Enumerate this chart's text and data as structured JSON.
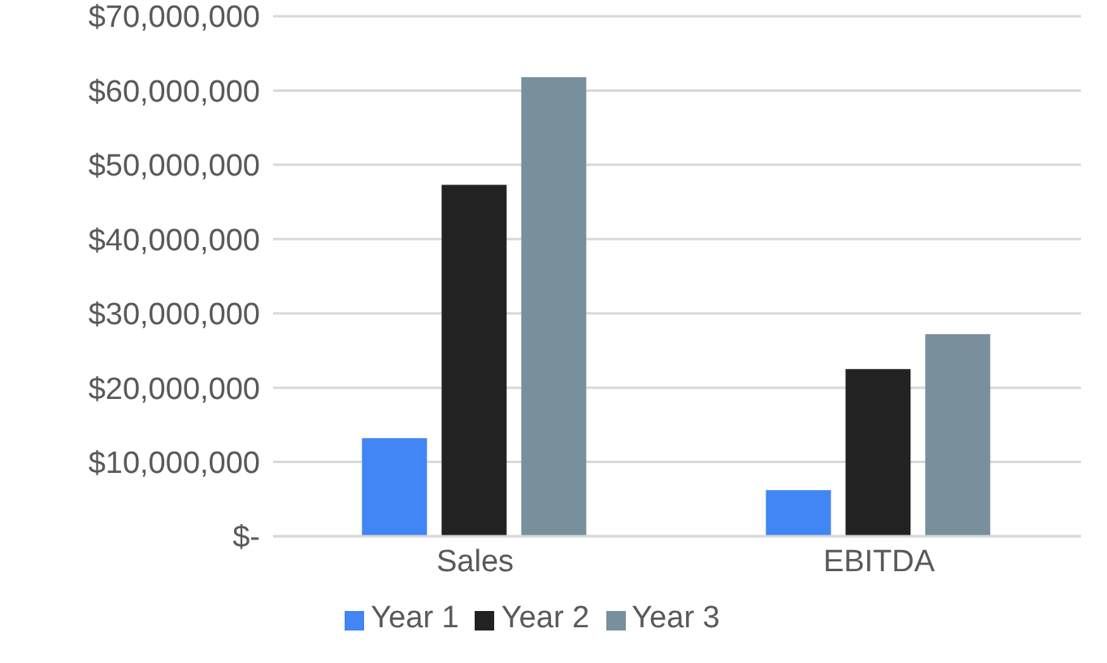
{
  "chart_data": {
    "type": "bar",
    "categories": [
      "Sales",
      "EBITDA"
    ],
    "series": [
      {
        "name": "Year 1",
        "color": "#4285f4",
        "values": [
          13200000,
          6200000
        ]
      },
      {
        "name": "Year 2",
        "color": "#222222",
        "values": [
          47300000,
          22500000
        ]
      },
      {
        "name": "Year 3",
        "color": "#78909c",
        "values": [
          61800000,
          27200000
        ]
      }
    ],
    "ylim": [
      0,
      70000000
    ],
    "yticks": [
      {
        "value": 0,
        "label": "$-"
      },
      {
        "value": 10000000,
        "label": "$10,000,000"
      },
      {
        "value": 20000000,
        "label": "$20,000,000"
      },
      {
        "value": 30000000,
        "label": "$30,000,000"
      },
      {
        "value": 40000000,
        "label": "$40,000,000"
      },
      {
        "value": 50000000,
        "label": "$50,000,000"
      },
      {
        "value": 60000000,
        "label": "$60,000,000"
      },
      {
        "value": 70000000,
        "label": "$70,000,000"
      }
    ],
    "grid": "y",
    "legend": "bottom"
  }
}
